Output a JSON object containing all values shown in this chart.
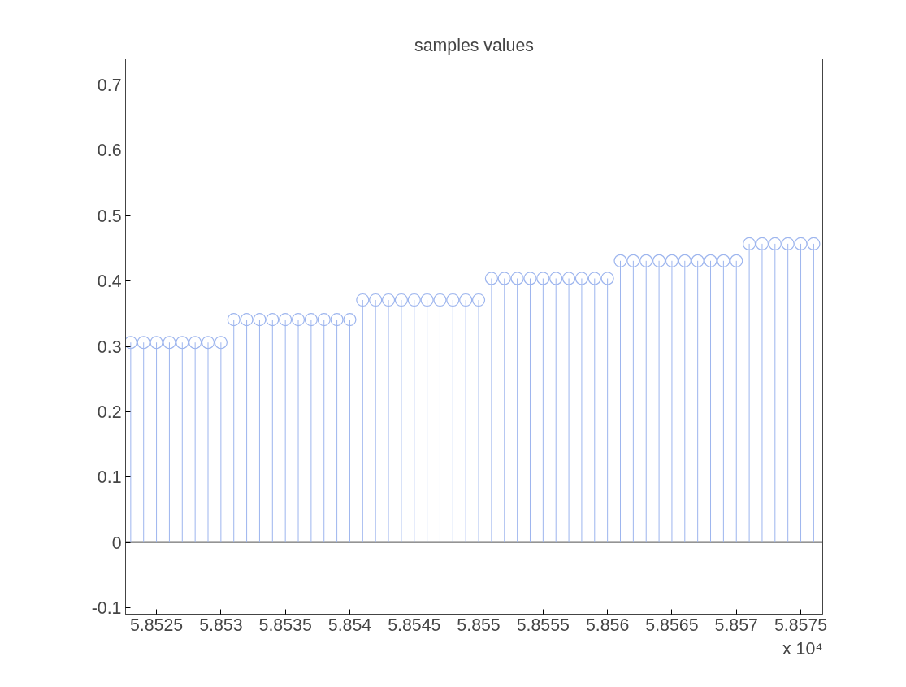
{
  "chart_data": {
    "type": "lollipop",
    "title": "samples values",
    "x": [
      5.8523,
      5.8524,
      5.8525,
      5.8526,
      5.8527,
      5.8528,
      5.8529,
      5.853,
      5.8531,
      5.8532,
      5.8533,
      5.8534,
      5.8535,
      5.8536,
      5.8537,
      5.8538,
      5.8539,
      5.854,
      5.8541,
      5.8542,
      5.8543,
      5.8544,
      5.8545,
      5.8546,
      5.8547,
      5.8548,
      5.8549,
      5.855,
      5.8551,
      5.8552,
      5.8553,
      5.8554,
      5.8555,
      5.8556,
      5.8557,
      5.8558,
      5.8559,
      5.856,
      5.8561,
      5.8562,
      5.8563,
      5.8564,
      5.8565,
      5.8566,
      5.8567,
      5.8568,
      5.8569,
      5.857,
      5.8571,
      5.8572,
      5.8573,
      5.8574,
      5.8575,
      5.8576
    ],
    "series": [
      {
        "color": "#9db5ee",
        "values": [
          0.306,
          0.306,
          0.306,
          0.306,
          0.306,
          0.306,
          0.306,
          0.306,
          0.341,
          0.341,
          0.341,
          0.341,
          0.341,
          0.341,
          0.341,
          0.341,
          0.341,
          0.341,
          0.371,
          0.371,
          0.371,
          0.371,
          0.371,
          0.371,
          0.371,
          0.371,
          0.371,
          0.371,
          0.404,
          0.404,
          0.404,
          0.404,
          0.404,
          0.404,
          0.404,
          0.404,
          0.404,
          0.404,
          0.431,
          0.431,
          0.431,
          0.431,
          0.431,
          0.431,
          0.431,
          0.431,
          0.431,
          0.431,
          0.457,
          0.457,
          0.457,
          0.457,
          0.457,
          0.457
        ]
      }
    ],
    "marker": "circle",
    "xlim": [
      5.85226,
      5.85767
    ],
    "ylim": [
      -0.11,
      0.74
    ],
    "xticks": [
      5.8525,
      5.853,
      5.8535,
      5.854,
      5.8545,
      5.855,
      5.8555,
      5.856,
      5.8565,
      5.857,
      5.8575
    ],
    "yticks": [
      -0.1,
      0,
      0.1,
      0.2,
      0.3,
      0.4,
      0.5,
      0.6,
      0.7
    ],
    "ref_lines": [
      {
        "axis": "y",
        "value": 0,
        "color": "#505050"
      }
    ],
    "annotations": [
      "x 10⁴"
    ],
    "grid": false
  }
}
